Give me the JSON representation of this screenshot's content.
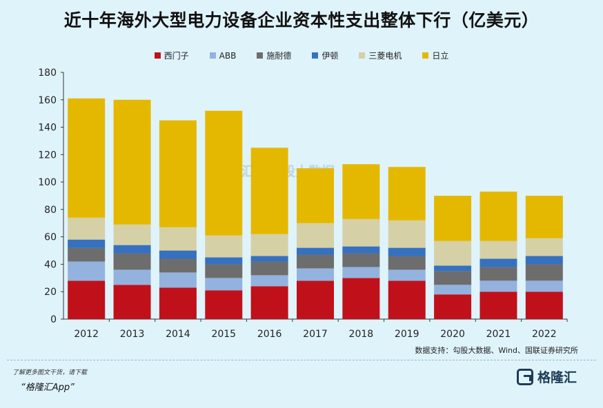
{
  "title": "近十年海外大型电力设备企业资本性支出整体下行（亿美元）",
  "source": "数据支持：勾股大数据、Wind、国联证券研究所",
  "footer": {
    "note": "了解更多图文干货，请下载",
    "app": "“格隆汇App”",
    "brand": "格隆汇"
  },
  "watermark": {
    "left": "格隆汇",
    "right": "勾股大数据"
  },
  "colors": {
    "background": "#dff3fb",
    "siemens": "#c0111a",
    "abb": "#93b2de",
    "schneider": "#6d6d6d",
    "eaton": "#3571c0",
    "mitsubishi": "#d6d0a6",
    "hitachi": "#e5b800"
  },
  "chart_data": {
    "type": "bar",
    "stacked": true,
    "categories": [
      "2012",
      "2013",
      "2014",
      "2015",
      "2016",
      "2017",
      "2018",
      "2019",
      "2020",
      "2021",
      "2022"
    ],
    "ylim": [
      0,
      180
    ],
    "yticks": [
      "0",
      "20",
      "40",
      "60",
      "80",
      "100",
      "120",
      "140",
      "160",
      "180"
    ],
    "legend_position": "top",
    "grid": false,
    "series": [
      {
        "name": "西门子",
        "color": "#c0111a",
        "values": [
          28,
          25,
          23,
          21,
          24,
          28,
          30,
          28,
          18,
          20,
          20
        ]
      },
      {
        "name": "ABB",
        "color": "#93b2de",
        "values": [
          14,
          11,
          11,
          9,
          8,
          9,
          8,
          8,
          7,
          8,
          8
        ]
      },
      {
        "name": "施耐德",
        "color": "#6d6d6d",
        "values": [
          10,
          12,
          10,
          10,
          10,
          10,
          10,
          10,
          10,
          10,
          12
        ]
      },
      {
        "name": "伊顿",
        "color": "#3571c0",
        "values": [
          6,
          6,
          6,
          5,
          4,
          5,
          5,
          6,
          4,
          6,
          6
        ]
      },
      {
        "name": "三菱电机",
        "color": "#d6d0a6",
        "values": [
          16,
          15,
          17,
          16,
          16,
          18,
          20,
          20,
          18,
          13,
          13
        ]
      },
      {
        "name": "日立",
        "color": "#e5b800",
        "values": [
          87,
          91,
          78,
          91,
          63,
          40,
          40,
          39,
          33,
          36,
          31
        ]
      }
    ]
  }
}
